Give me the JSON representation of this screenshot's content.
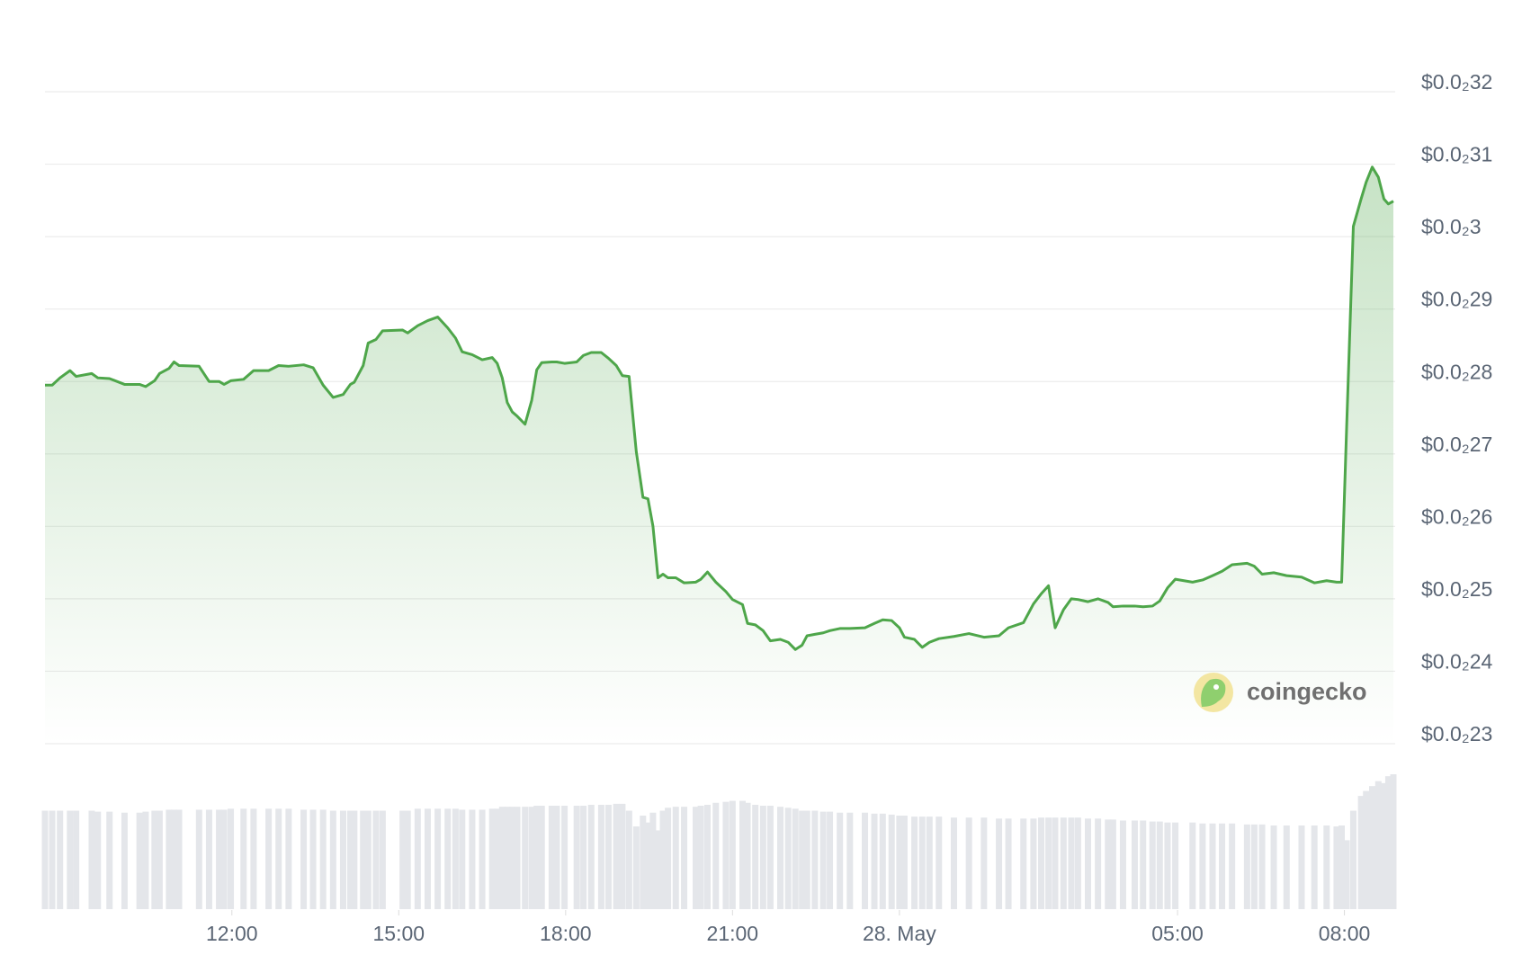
{
  "chart_data": {
    "type": "line",
    "x": [
      8.64,
      8.77,
      8.91,
      9.09,
      9.2,
      9.48,
      9.59,
      9.8,
      10.07,
      10.34,
      10.45,
      10.61,
      10.7,
      10.87,
      10.96,
      11.05,
      11.41,
      11.59,
      11.77,
      11.86,
      11.98,
      12.21,
      12.39,
      12.66,
      12.84,
      13.02,
      13.29,
      13.46,
      13.64,
      13.82,
      14.0,
      14.13,
      14.2,
      14.36,
      14.45,
      14.59,
      14.71,
      15.07,
      15.16,
      15.34,
      15.52,
      15.7,
      15.88,
      16.02,
      16.14,
      16.32,
      16.5,
      16.68,
      16.77,
      16.86,
      16.95,
      17.04,
      17.13,
      17.27,
      17.39,
      17.48,
      17.57,
      17.75,
      17.84,
      17.98,
      18.2,
      18.32,
      18.46,
      18.64,
      18.77,
      18.91,
      19.02,
      19.14,
      19.27,
      19.39,
      19.48,
      19.57,
      19.66,
      19.75,
      19.84,
      19.98,
      20.13,
      20.34,
      20.43,
      20.55,
      20.7,
      20.88,
      21.0,
      21.18,
      21.27,
      21.41,
      21.55,
      21.68,
      21.86,
      22.0,
      22.13,
      22.25,
      22.34,
      22.48,
      22.63,
      22.75,
      22.93,
      23.11,
      23.38,
      23.55,
      23.7,
      23.86,
      24.0,
      24.09,
      24.27,
      24.41,
      24.54,
      24.71,
      24.98,
      25.25,
      25.52,
      25.79,
      25.96,
      26.23,
      26.41,
      26.55,
      26.68,
      26.8,
      26.95,
      27.09,
      27.21,
      27.39,
      27.57,
      27.75,
      27.84,
      28.02,
      28.23,
      28.38,
      28.55,
      28.68,
      28.82,
      28.96,
      29.27,
      29.45,
      29.63,
      29.8,
      29.98,
      30.25,
      30.38,
      30.52,
      30.73,
      30.96,
      31.23,
      31.46,
      31.68,
      31.86,
      31.95,
      32.04,
      32.16,
      32.3,
      32.39,
      32.5,
      32.61,
      32.71,
      32.79,
      32.88
    ],
    "xlim": [
      8.64,
      32.88
    ],
    "xticks": [
      {
        "value": 12,
        "label": "12:00"
      },
      {
        "value": 15,
        "label": "15:00"
      },
      {
        "value": 18,
        "label": "18:00"
      },
      {
        "value": 21,
        "label": "21:00"
      },
      {
        "value": 24,
        "label": "28. May"
      },
      {
        "value": 29,
        "label": "05:00"
      },
      {
        "value": 32,
        "label": "08:00"
      }
    ],
    "series": [
      {
        "color": "#4ea64a",
        "values": [
          0.002795,
          0.002795,
          0.002805,
          0.002815,
          0.002807,
          0.002811,
          0.002805,
          0.002804,
          0.002796,
          0.002796,
          0.002793,
          0.002801,
          0.002811,
          0.002818,
          0.002827,
          0.002822,
          0.002821,
          0.0028,
          0.0028,
          0.002796,
          0.002801,
          0.002803,
          0.002815,
          0.002815,
          0.002822,
          0.002821,
          0.002823,
          0.002819,
          0.002795,
          0.002778,
          0.002782,
          0.002796,
          0.002799,
          0.002822,
          0.002853,
          0.002858,
          0.00287,
          0.002871,
          0.002867,
          0.002877,
          0.002884,
          0.002889,
          0.002874,
          0.00286,
          0.002841,
          0.002837,
          0.00283,
          0.002833,
          0.002825,
          0.002805,
          0.002771,
          0.002758,
          0.002752,
          0.002741,
          0.002774,
          0.002816,
          0.002826,
          0.002827,
          0.002827,
          0.002825,
          0.002827,
          0.002836,
          0.00284,
          0.00284,
          0.002832,
          0.002822,
          0.002808,
          0.002807,
          0.002703,
          0.00264,
          0.002638,
          0.0026,
          0.002529,
          0.002534,
          0.002529,
          0.002529,
          0.002522,
          0.002523,
          0.002527,
          0.002537,
          0.002523,
          0.00251,
          0.002499,
          0.002492,
          0.002466,
          0.002464,
          0.002456,
          0.002442,
          0.002444,
          0.00244,
          0.00243,
          0.002436,
          0.002449,
          0.002451,
          0.002453,
          0.002456,
          0.002459,
          0.002459,
          0.00246,
          0.002466,
          0.002471,
          0.00247,
          0.00246,
          0.002447,
          0.002444,
          0.002433,
          0.00244,
          0.002445,
          0.002448,
          0.002452,
          0.002447,
          0.002449,
          0.00246,
          0.002467,
          0.002493,
          0.002507,
          0.002518,
          0.00246,
          0.002485,
          0.0025,
          0.002499,
          0.002496,
          0.0025,
          0.002495,
          0.002489,
          0.00249,
          0.00249,
          0.002489,
          0.00249,
          0.002497,
          0.002515,
          0.002527,
          0.002523,
          0.002526,
          0.002532,
          0.002538,
          0.002547,
          0.002549,
          0.002545,
          0.002534,
          0.002536,
          0.002532,
          0.00253,
          0.002522,
          0.002525,
          0.002523,
          0.002523,
          0.002737,
          0.003014,
          0.003052,
          0.003075,
          0.003096,
          0.003082,
          0.003052,
          0.003045,
          0.003049
        ]
      }
    ],
    "ylim": [
      0.0023,
      0.0032
    ],
    "yticks": [
      {
        "value": 0.0023,
        "label": "$0.0₂23"
      },
      {
        "value": 0.0024,
        "label": "$0.0₂24"
      },
      {
        "value": 0.0025,
        "label": "$0.0₂25"
      },
      {
        "value": 0.0026,
        "label": "$0.0₂26"
      },
      {
        "value": 0.0027,
        "label": "$0.0₂27"
      },
      {
        "value": 0.0028,
        "label": "$0.0₂28"
      },
      {
        "value": 0.0029,
        "label": "$0.0₂29"
      },
      {
        "value": 0.003,
        "label": "$0.0₂3"
      },
      {
        "value": 0.0031,
        "label": "$0.0₂31"
      },
      {
        "value": 0.0032,
        "label": "$0.0₂32"
      }
    ],
    "grid": true,
    "volume": [
      100,
      100,
      100,
      100,
      100,
      100,
      99,
      99,
      98,
      98,
      99,
      100,
      100,
      101,
      101,
      101,
      101,
      101,
      101,
      101,
      102,
      102,
      102,
      102,
      102,
      102,
      101,
      101,
      101,
      100,
      100,
      100,
      100,
      100,
      100,
      100,
      100,
      100,
      100,
      102,
      102,
      102,
      102,
      102,
      101,
      101,
      101,
      102,
      102,
      104,
      104,
      104,
      104,
      104,
      104,
      105,
      105,
      105,
      105,
      105,
      105,
      105,
      106,
      106,
      106,
      107,
      107,
      100,
      84,
      95,
      88,
      98,
      80,
      100,
      103,
      104,
      104,
      104,
      105,
      106,
      108,
      109,
      110,
      110,
      108,
      106,
      105,
      105,
      104,
      103,
      102,
      100,
      100,
      100,
      99,
      99,
      98,
      98,
      98,
      97,
      97,
      96,
      95,
      95,
      94,
      94,
      94,
      94,
      93,
      93,
      93,
      92,
      92,
      92,
      92,
      93,
      93,
      93,
      93,
      93,
      93,
      92,
      92,
      91,
      91,
      90,
      90,
      90,
      89,
      89,
      88,
      88,
      88,
      87,
      87,
      87,
      87,
      86,
      86,
      86,
      85,
      85,
      85,
      85,
      85,
      84,
      85,
      70,
      100,
      115,
      120,
      125,
      130,
      128,
      135,
      137
    ],
    "volume_color": "#e4e6ea",
    "watermark": "coingecko"
  }
}
